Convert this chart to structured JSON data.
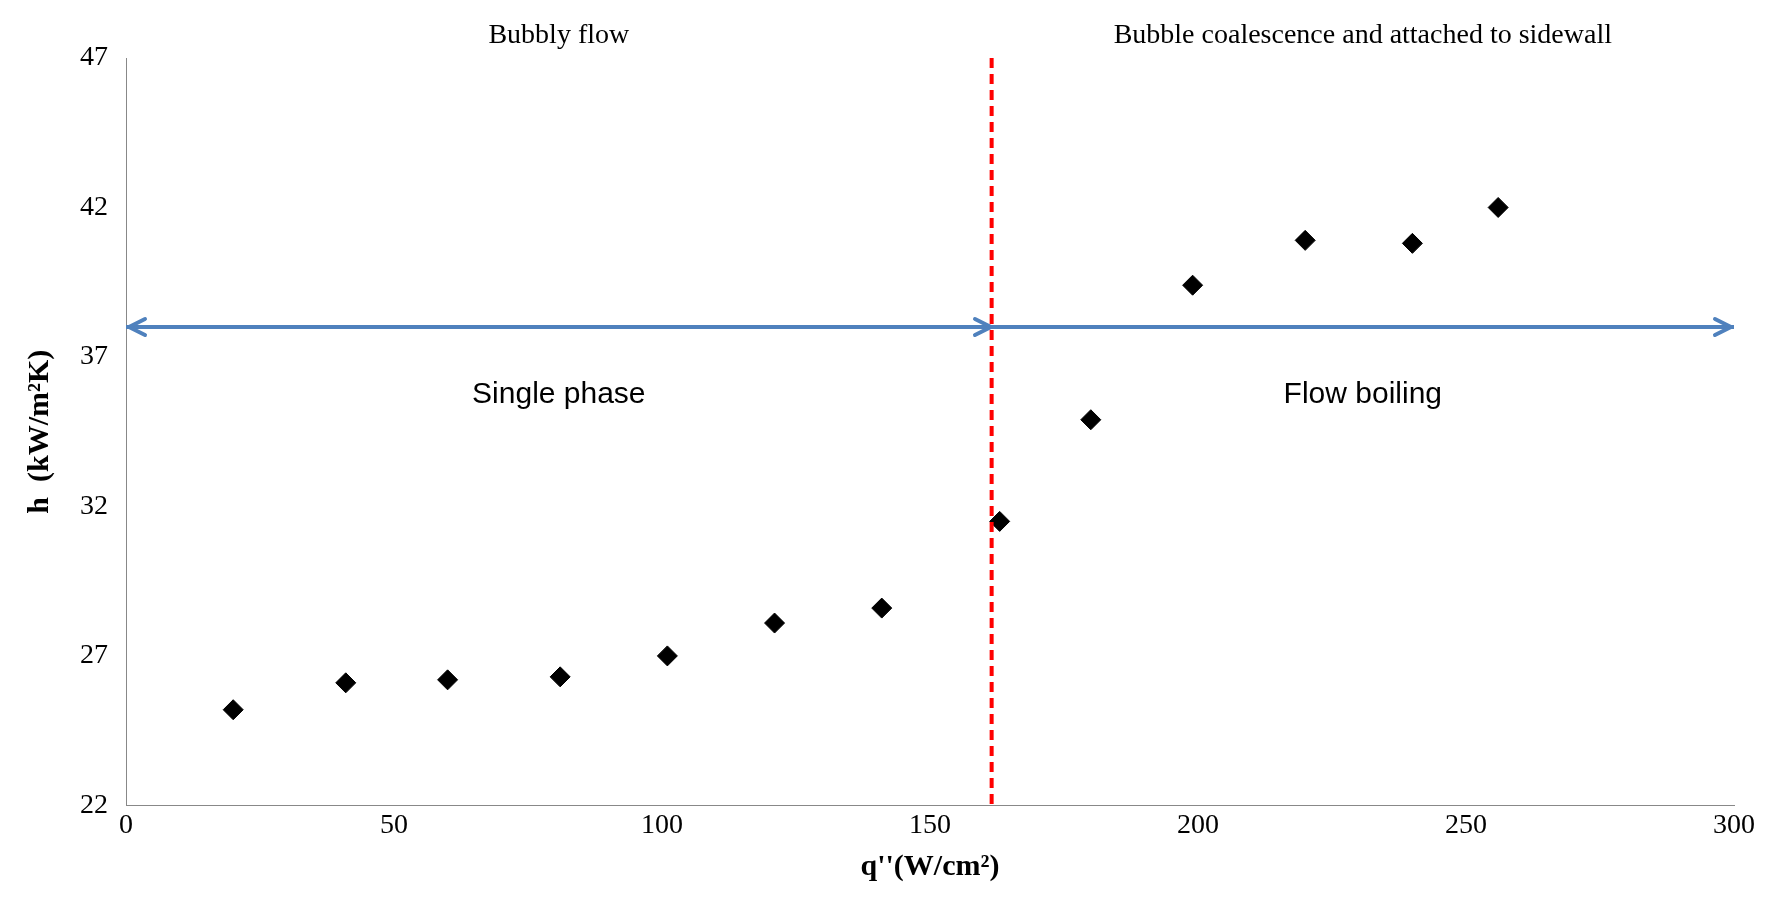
{
  "chart_data": {
    "type": "scatter",
    "xlabel": "q''(W/cm²)",
    "ylabel": "h  (kW/m²K)",
    "series": [
      {
        "color": "#000000",
        "x": [
          20,
          41,
          60,
          81,
          101,
          121,
          141,
          163,
          180,
          199,
          220,
          240,
          256
        ],
        "values": [
          25.2,
          26.1,
          26.2,
          26.3,
          27.0,
          28.1,
          28.6,
          31.5,
          34.9,
          39.4,
          40.9,
          40.8,
          42.0
        ]
      }
    ],
    "marker": "diamond",
    "xlim": [
      0,
      300
    ],
    "xticks": [
      0,
      50,
      100,
      150,
      200,
      250,
      300
    ],
    "ylim": [
      22,
      47
    ],
    "yticks": [
      22,
      27,
      32,
      37,
      42,
      47
    ],
    "grid": false,
    "legend": false,
    "ref_lines": [
      {
        "axis": "x",
        "value": 161.5,
        "color": "#ff0000",
        "line_style": "dashed"
      },
      {
        "axis": "y",
        "value": 38,
        "color": "#4f81bd",
        "line_style": "solid"
      }
    ],
    "annotations": [
      "Bubbly flow",
      "Bubble coalescence and attached to sidewall",
      "Single phase",
      "Flow boiling"
    ]
  }
}
